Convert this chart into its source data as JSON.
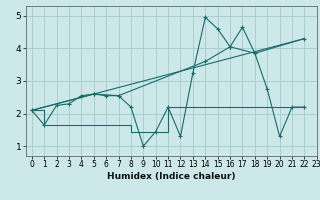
{
  "xlabel": "Humidex (Indice chaleur)",
  "xlim": [
    -0.5,
    23
  ],
  "ylim": [
    0.7,
    5.3
  ],
  "xticks": [
    0,
    1,
    2,
    3,
    4,
    5,
    6,
    7,
    8,
    9,
    10,
    11,
    12,
    13,
    14,
    15,
    16,
    17,
    18,
    19,
    20,
    21,
    22,
    23
  ],
  "yticks": [
    1,
    2,
    3,
    4,
    5
  ],
  "background_color": "#cce8e8",
  "line_color": "#1a6b6b",
  "grid_color": "#aacfcf",
  "line1_x": [
    0,
    1,
    2,
    3,
    4,
    5,
    6,
    7,
    8,
    9,
    10,
    11,
    12,
    13,
    14,
    15,
    16,
    17,
    18,
    19,
    20,
    21,
    22
  ],
  "line1_y": [
    2.1,
    1.65,
    2.25,
    2.3,
    2.55,
    2.6,
    2.55,
    2.55,
    2.2,
    1.0,
    1.45,
    2.2,
    1.3,
    3.25,
    4.95,
    4.6,
    4.05,
    4.65,
    3.85,
    2.75,
    1.3,
    2.2,
    2.2
  ],
  "line2_x": [
    0,
    1,
    2,
    3,
    4,
    5,
    6,
    7,
    8,
    9,
    10,
    11,
    12,
    13,
    14,
    15,
    16,
    17,
    18,
    19,
    20,
    21,
    22
  ],
  "line2_y": [
    2.1,
    1.65,
    1.65,
    1.65,
    1.65,
    1.65,
    1.65,
    1.65,
    1.45,
    1.45,
    1.45,
    2.2,
    2.2,
    2.2,
    2.2,
    2.2,
    2.2,
    2.2,
    2.2,
    2.2,
    2.2,
    2.2,
    2.2
  ],
  "line3_x": [
    0,
    5,
    7,
    14,
    16,
    18,
    22
  ],
  "line3_y": [
    2.1,
    2.6,
    2.55,
    3.6,
    4.05,
    3.85,
    4.3
  ],
  "line4_x": [
    0,
    22
  ],
  "line4_y": [
    2.1,
    4.3
  ]
}
